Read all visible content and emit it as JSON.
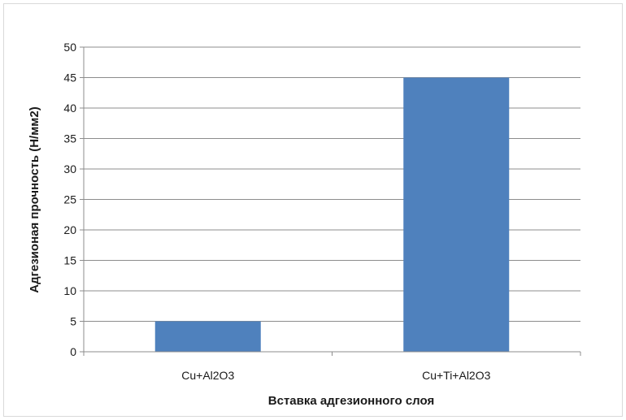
{
  "chart_data": {
    "type": "bar",
    "categories": [
      "Cu+Al2O3",
      "Cu+Ti+Al2O3"
    ],
    "values": [
      5,
      45
    ],
    "title": "",
    "xlabel": "Вставка адгезионного слоя",
    "ylabel": "Адгезионая прочность (Н/мм2)",
    "ylim": [
      0,
      50
    ],
    "yticks": [
      0,
      5,
      10,
      15,
      20,
      25,
      30,
      35,
      40,
      45,
      50
    ],
    "grid": true,
    "legend": "none",
    "colors": {
      "bar": "#4f81bd",
      "grid": "#8c8c8c",
      "axis": "#8c8c8c"
    }
  }
}
